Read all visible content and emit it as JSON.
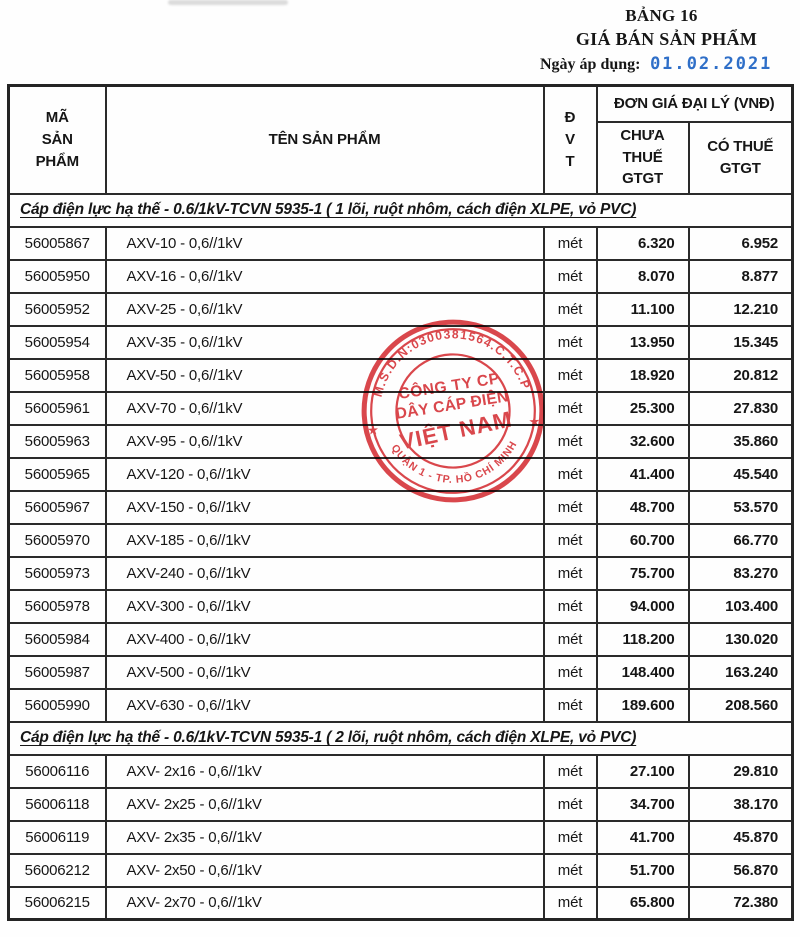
{
  "header": {
    "table_no": "BẢNG 16",
    "title": "GIÁ BÁN SẢN PHẨM",
    "date_label": "Ngày áp dụng:",
    "date_value": "01.02.2021"
  },
  "colors": {
    "date_blue": "#2f6fc8",
    "stamp_red": "#d8393e",
    "line_black": "#2a2a2a"
  },
  "table": {
    "headers": {
      "code_lines": [
        "MÃ",
        "SẢN",
        "PHẨM"
      ],
      "name": "TÊN SẢN PHẨM",
      "unit_lines": [
        "Đ",
        "V",
        "T"
      ],
      "price_group": "ĐƠN GIÁ ĐẠI LÝ (VNĐ)",
      "price_ex_lines": [
        "CHƯA",
        "THUẾ",
        "GTGT"
      ],
      "price_inc_lines": [
        "CÓ THUẾ",
        "GTGT"
      ]
    },
    "sections": [
      {
        "title": "Cáp điện lực hạ thế - 0.6/1kV-TCVN 5935-1 ( 1 lõi, ruột nhôm, cách điện XLPE, vỏ PVC)",
        "rows": [
          [
            "56005867",
            "AXV-10 - 0,6//1kV",
            "mét",
            "6.320",
            "6.952"
          ],
          [
            "56005950",
            "AXV-16 - 0,6//1kV",
            "mét",
            "8.070",
            "8.877"
          ],
          [
            "56005952",
            "AXV-25 - 0,6//1kV",
            "mét",
            "11.100",
            "12.210"
          ],
          [
            "56005954",
            "AXV-35 - 0,6//1kV",
            "mét",
            "13.950",
            "15.345"
          ],
          [
            "56005958",
            "AXV-50 - 0,6//1kV",
            "mét",
            "18.920",
            "20.812"
          ],
          [
            "56005961",
            "AXV-70 - 0,6//1kV",
            "mét",
            "25.300",
            "27.830"
          ],
          [
            "56005963",
            "AXV-95 - 0,6//1kV",
            "mét",
            "32.600",
            "35.860"
          ],
          [
            "56005965",
            "AXV-120 - 0,6//1kV",
            "mét",
            "41.400",
            "45.540"
          ],
          [
            "56005967",
            "AXV-150 - 0,6//1kV",
            "mét",
            "48.700",
            "53.570"
          ],
          [
            "56005970",
            "AXV-185 - 0,6//1kV",
            "mét",
            "60.700",
            "66.770"
          ],
          [
            "56005973",
            "AXV-240 - 0,6//1kV",
            "mét",
            "75.700",
            "83.270"
          ],
          [
            "56005978",
            "AXV-300 - 0,6//1kV",
            "mét",
            "94.000",
            "103.400"
          ],
          [
            "56005984",
            "AXV-400 - 0,6//1kV",
            "mét",
            "118.200",
            "130.020"
          ],
          [
            "56005987",
            "AXV-500 - 0,6//1kV",
            "mét",
            "148.400",
            "163.240"
          ],
          [
            "56005990",
            "AXV-630 - 0,6//1kV",
            "mét",
            "189.600",
            "208.560"
          ]
        ]
      },
      {
        "title": "Cáp điện lực hạ thế - 0.6/1kV-TCVN 5935-1 ( 2 lõi, ruột nhôm, cách điện XLPE, vỏ PVC)",
        "rows": [
          [
            "56006116",
            "AXV- 2x16 - 0,6//1kV",
            "mét",
            "27.100",
            "29.810"
          ],
          [
            "56006118",
            "AXV- 2x25 - 0,6//1kV",
            "mét",
            "34.700",
            "38.170"
          ],
          [
            "56006119",
            "AXV- 2x35 - 0,6//1kV",
            "mét",
            "41.700",
            "45.870"
          ],
          [
            "56006212",
            "AXV- 2x50 - 0,6//1kV",
            "mét",
            "51.700",
            "56.870"
          ],
          [
            "56006215",
            "AXV- 2x70 - 0,6//1kV",
            "mét",
            "65.800",
            "72.380"
          ]
        ]
      }
    ]
  },
  "stamp": {
    "top_arc": "M.S.D.N:0300381564.C.T.C.P",
    "center_line1": "CÔNG TY CP",
    "center_line2": "DÂY CÁP ĐIỆN",
    "center_line3": "VIỆT NAM",
    "bottom_arc": "QUẬN 1 - TP. HỒ CHÍ MINH",
    "star": "★"
  }
}
